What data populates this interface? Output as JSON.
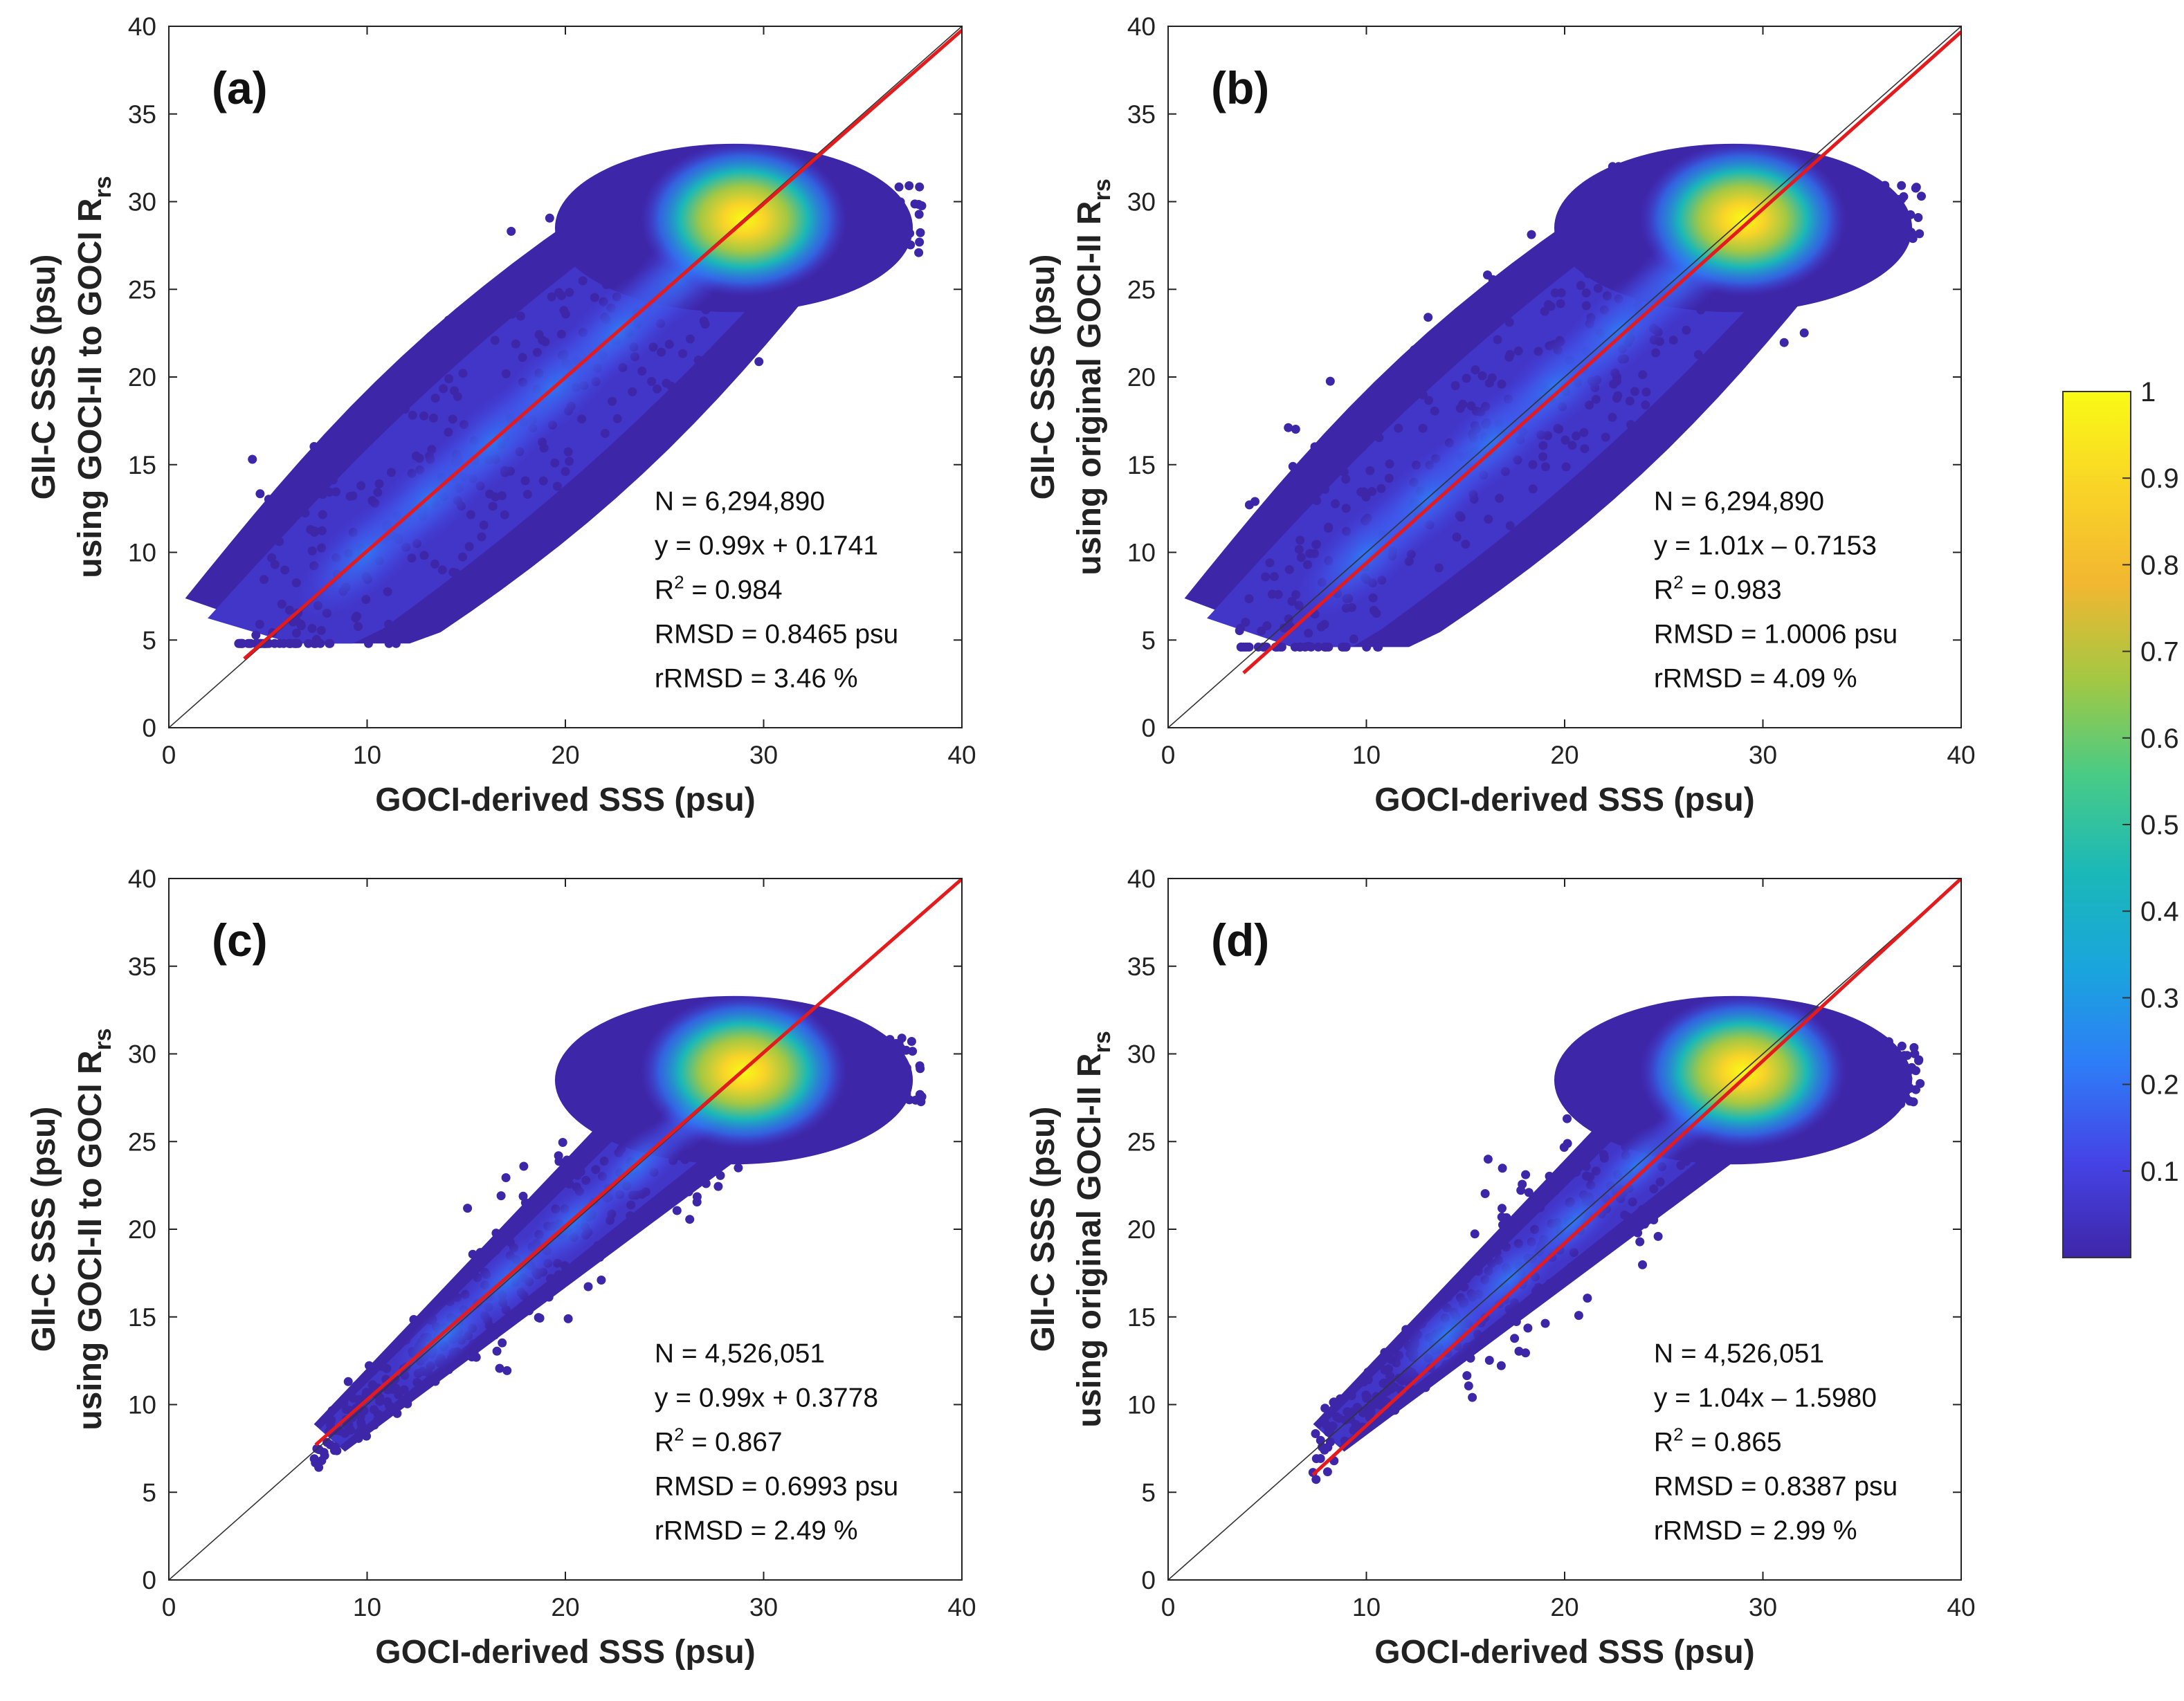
{
  "chart_data": [
    {
      "type": "scatter",
      "panel_label": "(a)",
      "xlabel": "GOCI-derived SSS (psu)",
      "ylabel_line1": "GII-C SSS (psu)",
      "ylabel_line2": "using GOCI-II to GOCI R",
      "ylabel_sub": "rs",
      "xlim": [
        0,
        40
      ],
      "ylim": [
        0,
        40
      ],
      "xticks": [
        "0",
        "10",
        "20",
        "30",
        "40"
      ],
      "yticks": [
        "0",
        "5",
        "10",
        "15",
        "20",
        "25",
        "30",
        "35",
        "40"
      ],
      "fit": {
        "slope": 0.99,
        "intercept": 0.1741,
        "x_range": [
          3.8,
          40
        ]
      },
      "one_to_one": true,
      "stats": {
        "n": "N = 6,294,890",
        "eq": "y = 0.99x + 0.1741",
        "r2_prefix": "R",
        "r2_value": " = 0.984",
        "rmsd": "RMSD = 0.8465 psu",
        "rrmsd": "rRMSD = 3.46 %"
      },
      "cloud": {
        "x_range": [
          3.5,
          38
        ],
        "y_range": [
          4.8,
          32
        ],
        "peak": [
          29,
          29
        ],
        "shape": "broad"
      }
    },
    {
      "type": "scatter",
      "panel_label": "(b)",
      "xlabel": "GOCI-derived SSS (psu)",
      "ylabel_line1": "GII-C SSS (psu)",
      "ylabel_line2": "using original GOCI-II R",
      "ylabel_sub": "rs",
      "xlim": [
        0,
        40
      ],
      "ylim": [
        0,
        40
      ],
      "xticks": [
        "0",
        "10",
        "20",
        "30",
        "40"
      ],
      "yticks": [
        "0",
        "5",
        "10",
        "15",
        "20",
        "25",
        "30",
        "35",
        "40"
      ],
      "fit": {
        "slope": 1.01,
        "intercept": -0.7153,
        "x_range": [
          3.8,
          40
        ]
      },
      "one_to_one": true,
      "stats": {
        "n": "N = 6,294,890",
        "eq": "y = 1.01x – 0.7153",
        "r2_prefix": "R",
        "r2_value": " = 0.983",
        "rmsd": "RMSD = 1.0006 psu",
        "rrmsd": "rRMSD = 4.09 %"
      },
      "cloud": {
        "x_range": [
          3.5,
          38
        ],
        "y_range": [
          4.6,
          32
        ],
        "peak": [
          29,
          29
        ],
        "shape": "broad"
      }
    },
    {
      "type": "scatter",
      "panel_label": "(c)",
      "xlabel": "GOCI-derived SSS (psu)",
      "ylabel_line1": "GII-C SSS (psu)",
      "ylabel_line2": "using GOCI-II to GOCI R",
      "ylabel_sub": "rs",
      "xlim": [
        0,
        40
      ],
      "ylim": [
        0,
        40
      ],
      "xticks": [
        "0",
        "10",
        "20",
        "30",
        "40"
      ],
      "yticks": [
        "0",
        "5",
        "10",
        "15",
        "20",
        "25",
        "30",
        "35",
        "40"
      ],
      "fit": {
        "slope": 0.99,
        "intercept": 0.3778,
        "x_range": [
          7.4,
          40
        ]
      },
      "one_to_one": true,
      "stats": {
        "n": "N = 4,526,051",
        "eq": "y = 0.99x + 0.3778",
        "r2_prefix": "R",
        "r2_value": " = 0.867",
        "rmsd": "RMSD = 0.6993 psu",
        "rrmsd": "rRMSD = 2.49 %"
      },
      "cloud": {
        "x_range": [
          7.3,
          38
        ],
        "y_range": [
          6,
          32
        ],
        "peak": [
          29,
          29
        ],
        "shape": "narrow"
      }
    },
    {
      "type": "scatter",
      "panel_label": "(d)",
      "xlabel": "GOCI-derived SSS (psu)",
      "ylabel_line1": "GII-C SSS (psu)",
      "ylabel_line2": "using original GOCI-II R",
      "ylabel_sub": "rs",
      "xlim": [
        0,
        40
      ],
      "ylim": [
        0,
        40
      ],
      "xticks": [
        "0",
        "10",
        "20",
        "30",
        "40"
      ],
      "yticks": [
        "0",
        "5",
        "10",
        "15",
        "20",
        "25",
        "30",
        "35",
        "40"
      ],
      "fit": {
        "slope": 1.04,
        "intercept": -1.598,
        "x_range": [
          7.3,
          40
        ]
      },
      "one_to_one": true,
      "stats": {
        "n": "N = 4,526,051",
        "eq": "y = 1.04x – 1.5980",
        "r2_prefix": "R",
        "r2_value": " = 0.865",
        "rmsd": "RMSD = 0.8387 psu",
        "rrmsd": "rRMSD = 2.99 %"
      },
      "cloud": {
        "x_range": [
          7.3,
          38
        ],
        "y_range": [
          5.7,
          32
        ],
        "peak": [
          29,
          29
        ],
        "shape": "narrow"
      }
    }
  ],
  "colorbar": {
    "colormap": "parula",
    "range": [
      0,
      1
    ],
    "tick_values": [
      0.1,
      0.2,
      0.3,
      0.4,
      0.5,
      0.6,
      0.7,
      0.8,
      0.9,
      1.0
    ],
    "tick_labels": [
      "0.1",
      "0.2",
      "0.3",
      "0.4",
      "0.5",
      "0.6",
      "0.7",
      "0.8",
      "0.9",
      "1"
    ],
    "colors": [
      "#3e26a8",
      "#4543e6",
      "#2e7cf7",
      "#1aa5dd",
      "#1ab8b8",
      "#48cb86",
      "#a3c843",
      "#f2b731",
      "#f9d427",
      "#f9fb15"
    ]
  },
  "colors": {
    "fit_line": "#e41a1c",
    "one_to_one": "#333333",
    "axes": "#222222"
  }
}
